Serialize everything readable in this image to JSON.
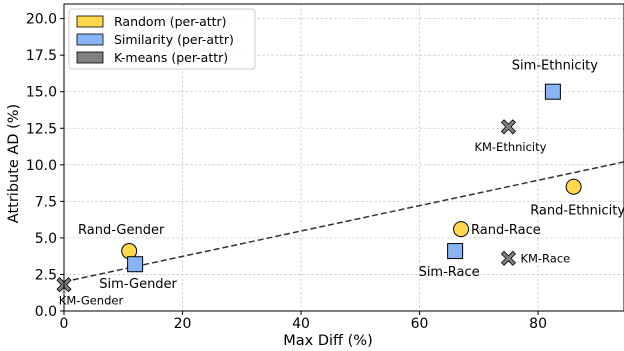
{
  "chart_data": {
    "type": "scatter",
    "xlabel": "Max Diff (%)",
    "ylabel": "Attribute AD (%)",
    "xlim": [
      0,
      94.5
    ],
    "ylim": [
      0,
      21
    ],
    "xticks": [
      0,
      20,
      40,
      60,
      80
    ],
    "yticks": [
      0.0,
      2.5,
      5.0,
      7.5,
      10.0,
      12.5,
      15.0,
      17.5,
      20.0
    ],
    "xtick_labels": [
      "0",
      "20",
      "40",
      "60",
      "80"
    ],
    "ytick_labels": [
      "0.0",
      "2.5",
      "5.0",
      "7.5",
      "10.0",
      "12.5",
      "15.0",
      "17.5",
      "20.0"
    ],
    "grid": true,
    "legend_position": "top-left",
    "legend": [
      {
        "label": "Random (per-attr)",
        "color": "#FFD84D"
      },
      {
        "label": "Similarity (per-attr)",
        "color": "#8AB4F8"
      },
      {
        "label": "K-means (per-attr)",
        "color": "#808080"
      }
    ],
    "series": [
      {
        "name": "Random (per-attr)",
        "marker": "circle",
        "color": "#FFD84D",
        "points": [
          {
            "label": "Rand-Gender",
            "x": 11.0,
            "y": 4.1
          },
          {
            "label": "Rand-Race",
            "x": 67.0,
            "y": 5.6
          },
          {
            "label": "Rand-Ethnicity",
            "x": 86.0,
            "y": 8.5
          }
        ]
      },
      {
        "name": "Similarity (per-attr)",
        "marker": "square",
        "color": "#8AB4F8",
        "points": [
          {
            "label": "Sim-Gender",
            "x": 12.0,
            "y": 3.2
          },
          {
            "label": "Sim-Race",
            "x": 66.0,
            "y": 4.1
          },
          {
            "label": "Sim-Ethnicity",
            "x": 82.5,
            "y": 15.0
          }
        ]
      },
      {
        "name": "K-means (per-attr)",
        "marker": "x",
        "color": "#808080",
        "points": [
          {
            "label": "KM-Gender",
            "x": 0.0,
            "y": 1.8
          },
          {
            "label": "KM-Race",
            "x": 75.0,
            "y": 3.6
          },
          {
            "label": "KM-Ethnicity",
            "x": 75.0,
            "y": 12.6
          }
        ]
      }
    ],
    "trendline": {
      "style": "dashed",
      "color": "#333333",
      "x": [
        0,
        94.5
      ],
      "y": [
        2.0,
        10.2
      ]
    }
  }
}
